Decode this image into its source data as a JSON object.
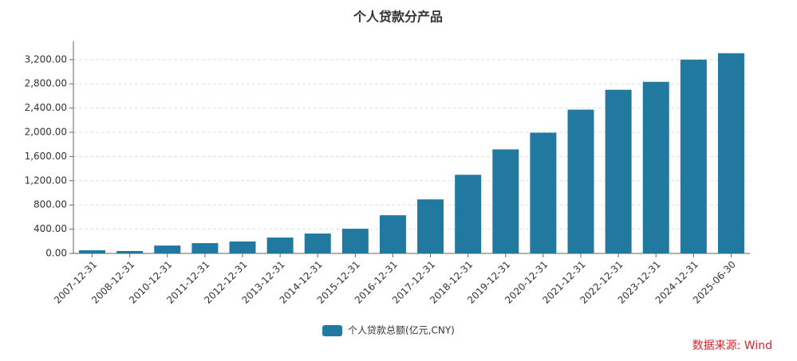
{
  "chart_data": {
    "type": "bar",
    "title": "个人贷款分产品",
    "categories": [
      "2007-12-31",
      "2008-12-31",
      "2010-12-31",
      "2011-12-31",
      "2012-12-31",
      "2013-12-31",
      "2014-12-31",
      "2015-12-31",
      "2016-12-31",
      "2017-12-31",
      "2018-12-31",
      "2019-12-31",
      "2020-12-31",
      "2021-12-31",
      "2022-12-31",
      "2023-12-31",
      "2024-12-31",
      "2025-06-30"
    ],
    "series": [
      {
        "name": "个人贷款总额(亿元,CNY)",
        "color": "#22799f",
        "values": [
          52,
          40,
          130,
          170,
          197,
          262,
          328,
          407,
          630,
          892,
          1298,
          1718,
          1993,
          2374,
          2702,
          2833,
          3200,
          3305
        ]
      }
    ],
    "ylim": [
      0,
      3500
    ],
    "yticks": [
      {
        "value": 0,
        "label": "0.00"
      },
      {
        "value": 400,
        "label": "400.00"
      },
      {
        "value": 800,
        "label": "800.00"
      },
      {
        "value": 1200,
        "label": "1,200.00"
      },
      {
        "value": 1600,
        "label": "1,600.00"
      },
      {
        "value": 2000,
        "label": "2,000.00"
      },
      {
        "value": 2400,
        "label": "2,400.00"
      },
      {
        "value": 2800,
        "label": "2,800.00"
      },
      {
        "value": 3200,
        "label": "3,200.00"
      }
    ],
    "grid": true,
    "source": "数据来源: Wind"
  }
}
